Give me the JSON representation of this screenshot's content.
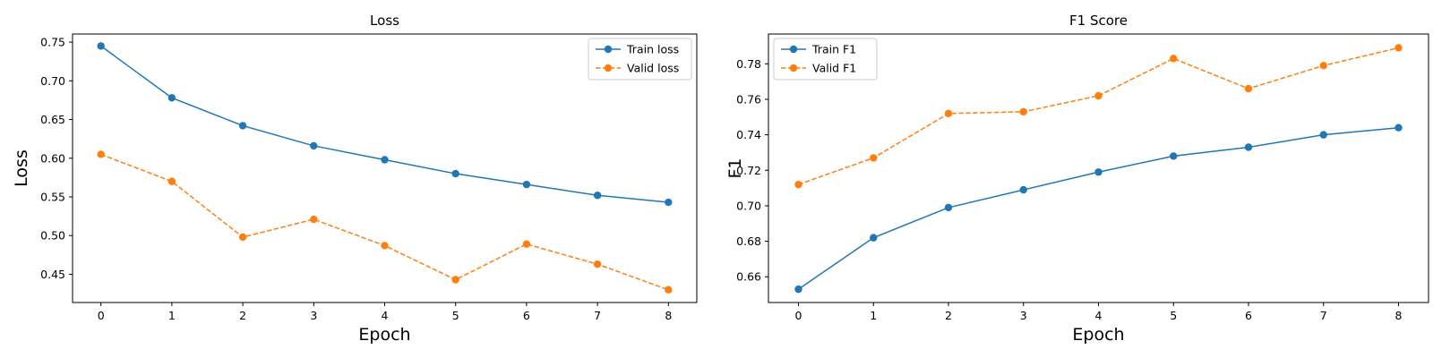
{
  "chart_data": [
    {
      "type": "line",
      "title": "Loss",
      "xlabel": "Epoch",
      "ylabel": "Loss",
      "x": [
        0,
        1,
        2,
        3,
        4,
        5,
        6,
        7,
        8
      ],
      "xlim": [
        -0.4,
        8.4
      ],
      "ylim": [
        0.4135,
        0.7605
      ],
      "xticks": [
        0,
        1,
        2,
        3,
        4,
        5,
        6,
        7,
        8
      ],
      "yticks": [
        "0.45",
        "0.50",
        "0.55",
        "0.60",
        "0.65",
        "0.70",
        "0.75"
      ],
      "legend": "top-right",
      "grid": false,
      "series": [
        {
          "name": "Train loss",
          "style": "solid",
          "color": "#1f77b4",
          "values": [
            0.745,
            0.678,
            0.642,
            0.616,
            0.598,
            0.58,
            0.566,
            0.552,
            0.543
          ]
        },
        {
          "name": "Valid loss",
          "style": "dashed",
          "color": "#ff7f0e",
          "values": [
            0.605,
            0.57,
            0.498,
            0.521,
            0.487,
            0.443,
            0.489,
            0.463,
            0.43
          ]
        }
      ]
    },
    {
      "type": "line",
      "title": "F1 Score",
      "xlabel": "Epoch",
      "ylabel": "F1",
      "x": [
        0,
        1,
        2,
        3,
        4,
        5,
        6,
        7,
        8
      ],
      "xlim": [
        -0.4,
        8.4
      ],
      "ylim": [
        0.6455,
        0.7968
      ],
      "xticks": [
        0,
        1,
        2,
        3,
        4,
        5,
        6,
        7,
        8
      ],
      "yticks": [
        "0.66",
        "0.68",
        "0.70",
        "0.72",
        "0.74",
        "0.76",
        "0.78"
      ],
      "legend": "top-left",
      "grid": false,
      "series": [
        {
          "name": "Train F1",
          "style": "solid",
          "color": "#1f77b4",
          "values": [
            0.653,
            0.682,
            0.699,
            0.709,
            0.719,
            0.728,
            0.733,
            0.74,
            0.744
          ]
        },
        {
          "name": "Valid F1",
          "style": "dashed",
          "color": "#ff7f0e",
          "values": [
            0.712,
            0.727,
            0.752,
            0.753,
            0.762,
            0.783,
            0.766,
            0.779,
            0.789
          ]
        }
      ]
    }
  ]
}
